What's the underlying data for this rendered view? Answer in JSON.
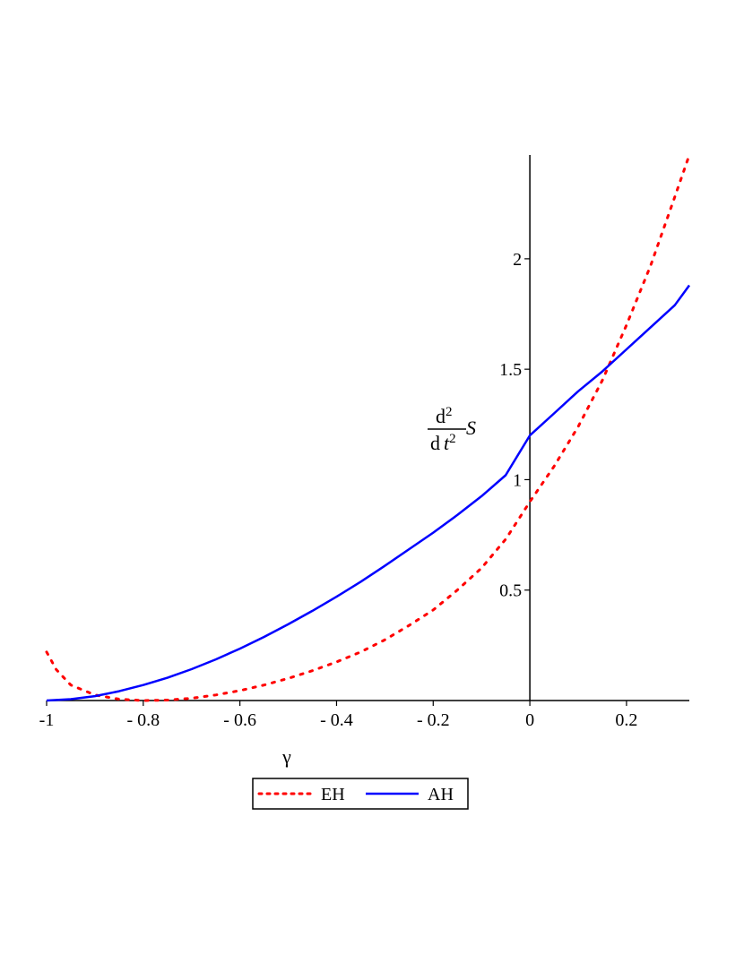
{
  "chart_data": {
    "type": "line",
    "title": "",
    "xlabel": "γ",
    "ylabel": {
      "numerator": "d",
      "numerator_exp": "2",
      "denominator_d": "d",
      "denominator_var": "t",
      "denominator_exp": "2",
      "variable": "S"
    },
    "xlim": [
      -1,
      0.33
    ],
    "ylim": [
      0,
      2.47
    ],
    "x_ticks": [
      -1,
      -0.8,
      -0.6,
      -0.4,
      -0.2,
      0,
      0.2
    ],
    "x_tick_labels": [
      "-1",
      "- 0.8",
      "- 0.6",
      "- 0.4",
      "- 0.2",
      "0",
      "0.2"
    ],
    "y_ticks": [
      0.5,
      1,
      1.5,
      2
    ],
    "y_tick_labels": [
      "0.5",
      "1",
      "1.5",
      "2"
    ],
    "grid": false,
    "legend_position": "bottom",
    "series": [
      {
        "name": "EH",
        "color": "#ff0000",
        "style": "dotted",
        "x": [
          -1.0,
          -0.98,
          -0.95,
          -0.9,
          -0.85,
          -0.8,
          -0.75,
          -0.7,
          -0.65,
          -0.6,
          -0.55,
          -0.5,
          -0.45,
          -0.4,
          -0.35,
          -0.3,
          -0.25,
          -0.2,
          -0.15,
          -0.1,
          -0.05,
          0.0,
          0.05,
          0.1,
          0.15,
          0.2,
          0.25,
          0.3,
          0.33
        ],
        "y": [
          0.22,
          0.14,
          0.07,
          0.025,
          0.006,
          0.0,
          0.002,
          0.01,
          0.025,
          0.045,
          0.07,
          0.1,
          0.135,
          0.175,
          0.22,
          0.275,
          0.34,
          0.41,
          0.5,
          0.6,
          0.73,
          0.9,
          1.06,
          1.24,
          1.45,
          1.7,
          1.97,
          2.28,
          2.47
        ]
      },
      {
        "name": "AH",
        "color": "#0000ff",
        "style": "solid",
        "x": [
          -1.0,
          -0.95,
          -0.9,
          -0.85,
          -0.8,
          -0.75,
          -0.7,
          -0.65,
          -0.6,
          -0.55,
          -0.5,
          -0.45,
          -0.4,
          -0.35,
          -0.3,
          -0.25,
          -0.2,
          -0.15,
          -0.1,
          -0.05,
          0.0,
          0.05,
          0.1,
          0.15,
          0.2,
          0.25,
          0.3,
          0.33
        ],
        "y": [
          0.0,
          0.006,
          0.02,
          0.042,
          0.07,
          0.103,
          0.142,
          0.186,
          0.235,
          0.288,
          0.345,
          0.406,
          0.47,
          0.538,
          0.61,
          0.685,
          0.76,
          0.84,
          0.925,
          1.02,
          1.2,
          1.3,
          1.4,
          1.49,
          1.59,
          1.69,
          1.79,
          1.88
        ]
      }
    ]
  }
}
